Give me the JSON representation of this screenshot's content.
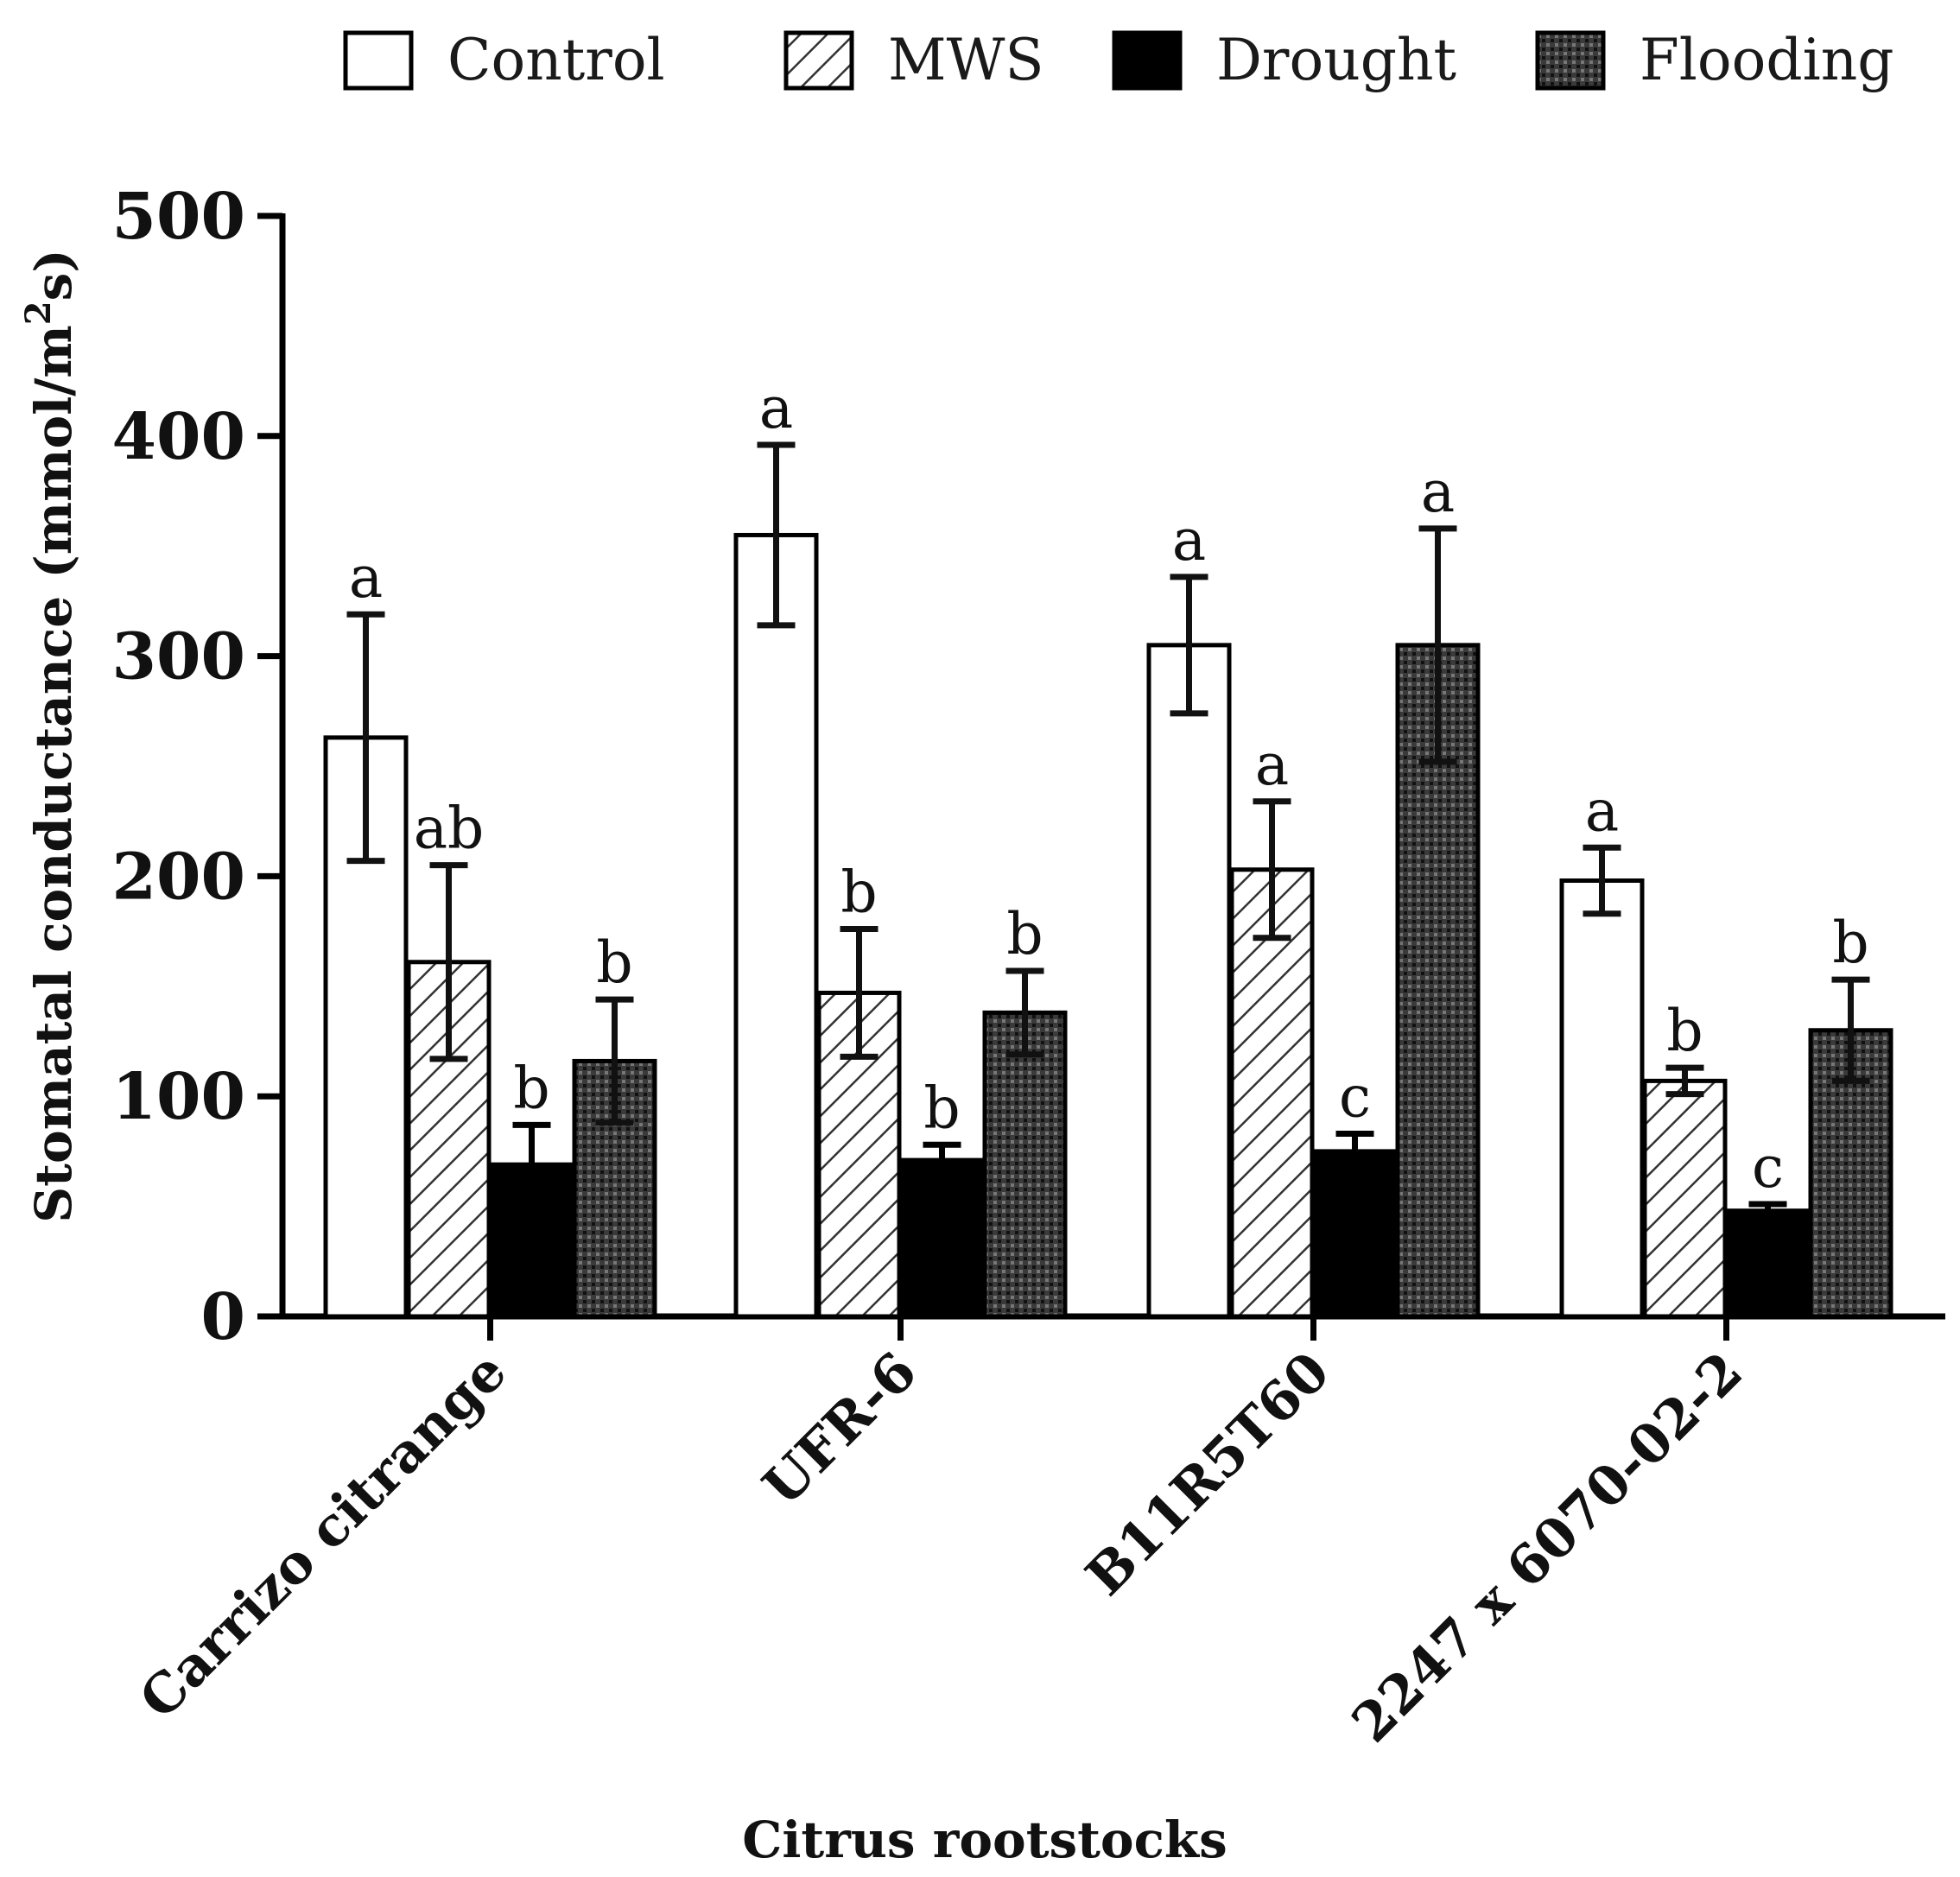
{
  "chart_data": {
    "type": "bar",
    "xlabel": "Citrus rootstocks",
    "ylabel": "Stomatal conductance (mmol/m²s)",
    "ylabel_parts": {
      "before": "Stomatal conductance (mmol/m",
      "sup": "2",
      "after": "s)"
    },
    "ylim": [
      0,
      500
    ],
    "yticks": [
      "0",
      "100",
      "200",
      "300",
      "400",
      "500"
    ],
    "categories": [
      "Carrizo citrange",
      "UFR-6",
      "B11R5T60",
      "2247 x 6070-02-2"
    ],
    "legend_position": "top",
    "series": [
      {
        "name": "Control",
        "pattern": "white",
        "values": [
          263,
          355,
          305,
          198
        ],
        "errors": [
          56,
          41,
          31,
          15
        ],
        "letters": [
          "a",
          "a",
          "a",
          "a"
        ]
      },
      {
        "name": "MWS",
        "pattern": "diagonal-hatch",
        "values": [
          161,
          147,
          203,
          107
        ],
        "errors": [
          44,
          29,
          31,
          6
        ],
        "letters": [
          "ab",
          "b",
          "a",
          "b"
        ]
      },
      {
        "name": "Drought",
        "pattern": "solid-black",
        "values": [
          69,
          71,
          75,
          48
        ],
        "errors": [
          18,
          7,
          8,
          3
        ],
        "letters": [
          "b",
          "b",
          "c",
          "c"
        ]
      },
      {
        "name": "Flooding",
        "pattern": "dark-crosshatch",
        "values": [
          116,
          138,
          305,
          130
        ],
        "errors": [
          28,
          19,
          53,
          23
        ],
        "letters": [
          "b",
          "b",
          "a",
          "b"
        ]
      }
    ]
  }
}
